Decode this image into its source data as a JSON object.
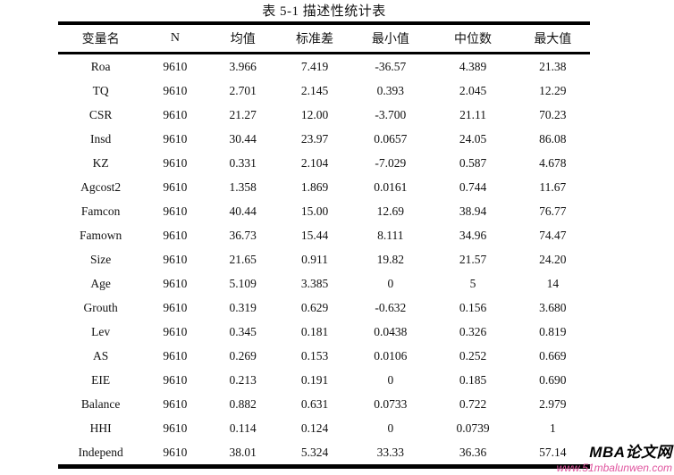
{
  "title": "表 5-1 描述性统计表",
  "table": {
    "headers": [
      "变量名",
      "N",
      "均值",
      "标准差",
      "最小值",
      "中位数",
      "最大值"
    ],
    "rows": [
      [
        "Roa",
        "9610",
        "3.966",
        "7.419",
        "-36.57",
        "4.389",
        "21.38"
      ],
      [
        "TQ",
        "9610",
        "2.701",
        "2.145",
        "0.393",
        "2.045",
        "12.29"
      ],
      [
        "CSR",
        "9610",
        "21.27",
        "12.00",
        "-3.700",
        "21.11",
        "70.23"
      ],
      [
        "Insd",
        "9610",
        "30.44",
        "23.97",
        "0.0657",
        "24.05",
        "86.08"
      ],
      [
        "KZ",
        "9610",
        "0.331",
        "2.104",
        "-7.029",
        "0.587",
        "4.678"
      ],
      [
        "Agcost2",
        "9610",
        "1.358",
        "1.869",
        "0.0161",
        "0.744",
        "11.67"
      ],
      [
        "Famcon",
        "9610",
        "40.44",
        "15.00",
        "12.69",
        "38.94",
        "76.77"
      ],
      [
        "Famown",
        "9610",
        "36.73",
        "15.44",
        "8.111",
        "34.96",
        "74.47"
      ],
      [
        "Size",
        "9610",
        "21.65",
        "0.911",
        "19.82",
        "21.57",
        "24.20"
      ],
      [
        "Age",
        "9610",
        "5.109",
        "3.385",
        "0",
        "5",
        "14"
      ],
      [
        "Grouth",
        "9610",
        "0.319",
        "0.629",
        "-0.632",
        "0.156",
        "3.680"
      ],
      [
        "Lev",
        "9610",
        "0.345",
        "0.181",
        "0.0438",
        "0.326",
        "0.819"
      ],
      [
        "AS",
        "9610",
        "0.269",
        "0.153",
        "0.0106",
        "0.252",
        "0.669"
      ],
      [
        "EIE",
        "9610",
        "0.213",
        "0.191",
        "0",
        "0.185",
        "0.690"
      ],
      [
        "Balance",
        "9610",
        "0.882",
        "0.631",
        "0.0733",
        "0.722",
        "2.979"
      ],
      [
        "HHI",
        "9610",
        "0.114",
        "0.124",
        "0",
        "0.0739",
        "1"
      ],
      [
        "Independ",
        "9610",
        "38.01",
        "5.324",
        "33.33",
        "36.36",
        "57.14"
      ]
    ]
  },
  "watermark": {
    "brand": "MBA论文网",
    "url": "www.51mbalunwen.com"
  },
  "colors": {
    "border": "#000000",
    "text": "#111111",
    "watermark_brand": "#000000",
    "watermark_url": "#e0559f"
  }
}
